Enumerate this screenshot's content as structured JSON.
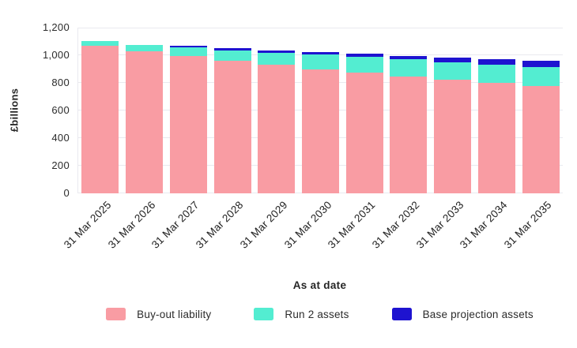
{
  "chart_data": {
    "type": "bar",
    "stacked": true,
    "title": "",
    "xlabel": "As at date",
    "ylabel": "£billions",
    "ylim": [
      0,
      1200
    ],
    "grid": true,
    "legend_position": "bottom",
    "yticks": [
      {
        "value": 0,
        "label": "0"
      },
      {
        "value": 200,
        "label": "200"
      },
      {
        "value": 400,
        "label": "400"
      },
      {
        "value": 600,
        "label": "600"
      },
      {
        "value": 800,
        "label": "800"
      },
      {
        "value": 1000,
        "label": "1,000"
      },
      {
        "value": 1200,
        "label": "1,200"
      }
    ],
    "categories": [
      "31 Mar 2025",
      "31 Mar 2026",
      "31 Mar 2027",
      "31 Mar 2028",
      "31 Mar 2029",
      "31 Mar 2030",
      "31 Mar 2031",
      "31 Mar 2032",
      "31 Mar 2033",
      "31 Mar 2034",
      "31 Mar 2035"
    ],
    "series": [
      {
        "name": "Buy-out liability",
        "color": "#F99CA3",
        "values": [
          1070,
          1030,
          995,
          960,
          930,
          900,
          875,
          845,
          825,
          800,
          780
        ]
      },
      {
        "name": "Run 2 assets",
        "color": "#53EDD1",
        "values": [
          35,
          45,
          60,
          75,
          90,
          105,
          115,
          125,
          125,
          130,
          135
        ]
      },
      {
        "name": "Base projection assets",
        "color": "#1E13D0",
        "values": [
          0,
          0,
          12,
          15,
          15,
          20,
          20,
          25,
          35,
          42,
          45
        ]
      }
    ]
  }
}
